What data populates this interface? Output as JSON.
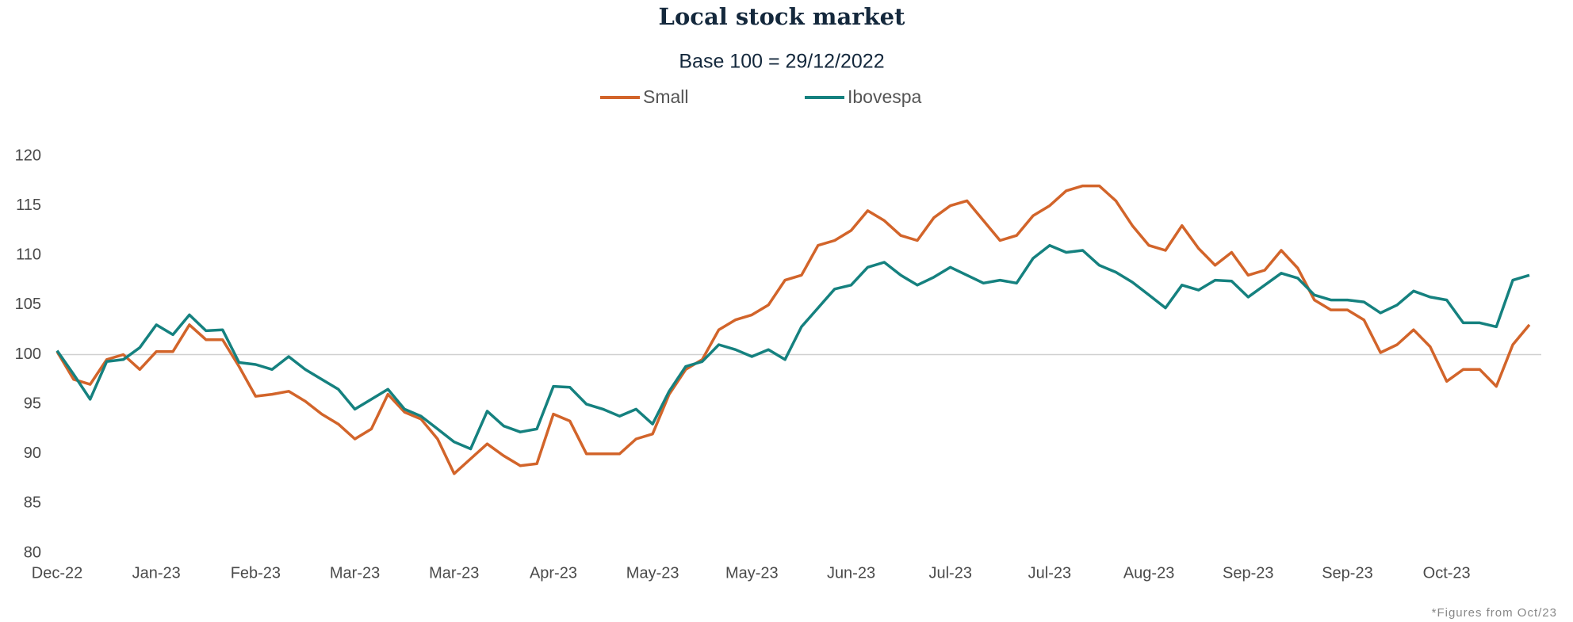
{
  "chart_data": {
    "type": "line",
    "title": "Local stock market",
    "subtitle": "Base 100 = 29/12/2022",
    "footnote": "*Figures from Oct/23",
    "categories": [
      "Dec-22",
      null,
      null,
      null,
      null,
      null,
      "Jan-23",
      null,
      null,
      null,
      null,
      null,
      "Feb-23",
      null,
      null,
      null,
      null,
      null,
      "Mar-23",
      null,
      null,
      null,
      null,
      null,
      "Mar-23",
      null,
      null,
      null,
      null,
      null,
      "Apr-23",
      null,
      null,
      null,
      null,
      null,
      "May-23",
      null,
      null,
      null,
      null,
      null,
      "May-23",
      null,
      null,
      null,
      null,
      null,
      "Jun-23",
      null,
      null,
      null,
      null,
      null,
      "Jul-23",
      null,
      null,
      null,
      null,
      null,
      "Jul-23",
      null,
      null,
      null,
      null,
      null,
      "Aug-23",
      null,
      null,
      null,
      null,
      null,
      "Sep-23",
      null,
      null,
      null,
      null,
      null,
      "Sep-23",
      null,
      null,
      null,
      null,
      null,
      "Oct-23",
      null,
      null,
      null,
      null,
      null
    ],
    "series": [
      {
        "name": "Small",
        "color": "#d2642a",
        "values": [
          100.3,
          97.5,
          97,
          99.5,
          100,
          98.5,
          100.3,
          100.3,
          103,
          101.5,
          101.5,
          98.8,
          95.8,
          96,
          96.3,
          95.3,
          94,
          93,
          91.5,
          92.5,
          96,
          94.2,
          93.5,
          91.5,
          88,
          89.5,
          91,
          89.8,
          88.8,
          89,
          94,
          93.3,
          90,
          90,
          90,
          91.5,
          92,
          96,
          98.5,
          99.5,
          102.5,
          103.5,
          104,
          105,
          107.5,
          108,
          111,
          111.5,
          112.5,
          114.5,
          113.5,
          112,
          111.5,
          113.8,
          115,
          115.5,
          113.5,
          111.5,
          112,
          114,
          115,
          116.5,
          117,
          117,
          115.5,
          113,
          111,
          110.5,
          113,
          110.7,
          109,
          110.3,
          108,
          108.5,
          110.5,
          108.7,
          105.5,
          104.5,
          104.5,
          103.5,
          100.2,
          101,
          102.5,
          100.8,
          97.3,
          98.5,
          98.5,
          96.8,
          101,
          103
        ]
      },
      {
        "name": "Ibovespa",
        "color": "#15817f",
        "values": [
          100.4,
          98,
          95.5,
          99.3,
          99.5,
          100.7,
          103,
          102,
          104,
          102.4,
          102.5,
          99.2,
          99,
          98.5,
          99.8,
          98.5,
          97.5,
          96.5,
          94.5,
          95.5,
          96.5,
          94.5,
          93.8,
          92.5,
          91.2,
          90.5,
          94.3,
          92.8,
          92.2,
          92.5,
          96.8,
          96.7,
          95,
          94.5,
          93.8,
          94.5,
          93,
          96.3,
          98.8,
          99.3,
          101,
          100.5,
          99.8,
          100.5,
          99.5,
          102.8,
          104.7,
          106.6,
          107,
          108.8,
          109.3,
          108,
          107,
          107.8,
          108.8,
          108,
          107.2,
          107.5,
          107.2,
          109.7,
          111,
          110.3,
          110.5,
          109,
          108.3,
          107.3,
          106,
          104.7,
          107,
          106.5,
          107.5,
          107.4,
          105.8,
          107,
          108.2,
          107.7,
          106,
          105.5,
          105.5,
          105.3,
          104.2,
          105,
          106.4,
          105.8,
          105.5,
          103.2,
          103.2,
          102.8,
          107.5,
          108
        ]
      }
    ],
    "ylim": [
      80,
      120
    ],
    "yticks": [
      80,
      85,
      90,
      95,
      100,
      105,
      110,
      115,
      120
    ],
    "reference_line": 100
  }
}
